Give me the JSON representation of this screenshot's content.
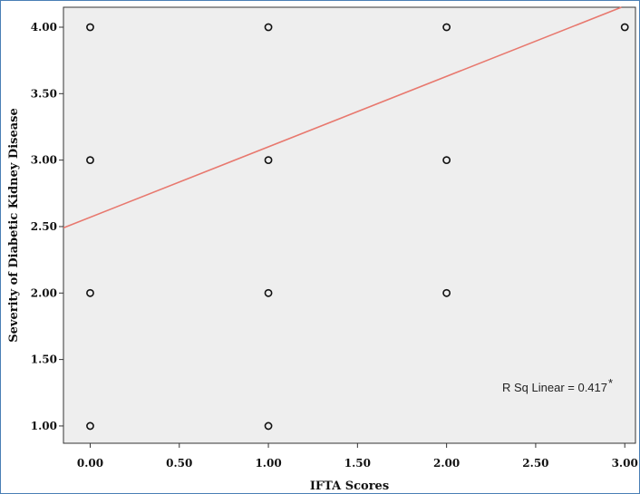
{
  "colors": {
    "plot_background": "#eeeeee",
    "frame_border": "#4a7fb5",
    "fit_line": "#e8786e",
    "marker": "#111111"
  },
  "chart_data": {
    "type": "scatter",
    "xlabel": "IFTA Scores",
    "ylabel": "Severity of Diabetic Kidney Disease",
    "xlim": [
      -0.15,
      3.06
    ],
    "ylim": [
      0.87,
      4.15
    ],
    "x_ticks": [
      "0.00",
      "0.50",
      "1.00",
      "1.50",
      "2.00",
      "2.50",
      "3.00"
    ],
    "y_ticks": [
      "1.00",
      "1.50",
      "2.00",
      "2.50",
      "3.00",
      "3.50",
      "4.00"
    ],
    "points": [
      {
        "x": 0,
        "y": 4
      },
      {
        "x": 0,
        "y": 3
      },
      {
        "x": 0,
        "y": 2
      },
      {
        "x": 0,
        "y": 1
      },
      {
        "x": 1,
        "y": 4
      },
      {
        "x": 1,
        "y": 3
      },
      {
        "x": 1,
        "y": 2
      },
      {
        "x": 1,
        "y": 1
      },
      {
        "x": 2,
        "y": 4
      },
      {
        "x": 2,
        "y": 3
      },
      {
        "x": 2,
        "y": 2
      },
      {
        "x": 3,
        "y": 4
      }
    ],
    "fit_line": {
      "intercept": 2.57,
      "slope": 0.53
    },
    "annotation": "R Sq Linear = 0.417",
    "annotation_mark": "*",
    "grid": false
  }
}
